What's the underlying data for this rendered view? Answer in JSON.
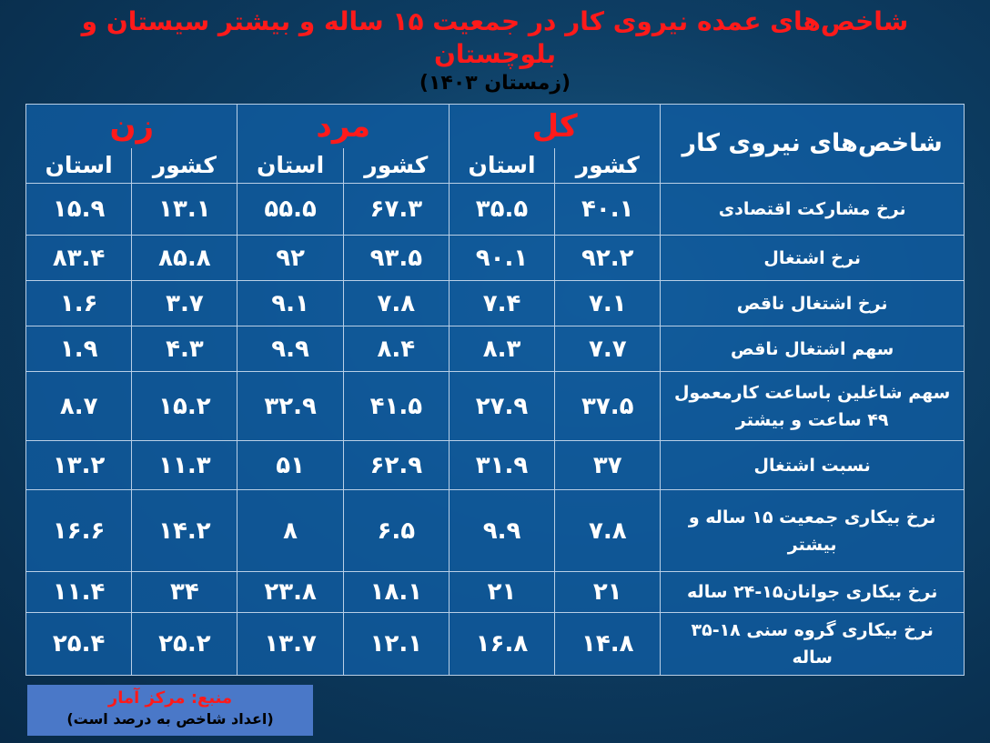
{
  "title": "شاخص‌های عمده نیروی کار در جمعیت ۱۵ ساله و بیشتر سیستان و بلوچستان",
  "subtitle": "(زمستان ۱۴۰۳)",
  "table": {
    "main_header": "شاخص‌های نیروی کار",
    "groups": [
      "کل",
      "مرد",
      "زن"
    ],
    "subheaders": [
      "کشور",
      "استان"
    ],
    "rows": [
      {
        "label": "نرخ مشارکت اقتصادی",
        "values": [
          "۴۰.۱",
          "۳۵.۵",
          "۶۷.۳",
          "۵۵.۵",
          "۱۳.۱",
          "۱۵.۹"
        ]
      },
      {
        "label": "نرخ اشتغال",
        "values": [
          "۹۲.۲",
          "۹۰.۱",
          "۹۳.۵",
          "۹۲",
          "۸۵.۸",
          "۸۳.۴"
        ]
      },
      {
        "label": "نرخ اشتغال ناقص",
        "values": [
          "۷.۱",
          "۷.۴",
          "۷.۸",
          "۹.۱",
          "۳.۷",
          "۱.۶"
        ]
      },
      {
        "label": "سهم اشتغال ناقص",
        "values": [
          "۷.۷",
          "۸.۳",
          "۸.۴",
          "۹.۹",
          "۴.۳",
          "۱.۹"
        ]
      },
      {
        "label": "سهم شاغلین باساعت کارمعمول ۴۹ ساعت و بیشتر",
        "values": [
          "۳۷.۵",
          "۲۷.۹",
          "۴۱.۵",
          "۳۲.۹",
          "۱۵.۲",
          "۸.۷"
        ]
      },
      {
        "label": "نسبت اشتغال",
        "values": [
          "۳۷",
          "۳۱.۹",
          "۶۲.۹",
          "۵۱",
          "۱۱.۳",
          "۱۳.۲"
        ]
      },
      {
        "label": "نرخ بیکاری جمعیت ۱۵ ساله و بیشتر",
        "values": [
          "۷.۸",
          "۹.۹",
          "۶.۵",
          "۸",
          "۱۴.۲",
          "۱۶.۶"
        ]
      },
      {
        "label": "نرخ بیکاری جوانان۱۵-۲۴ ساله",
        "values": [
          "۲۱",
          "۲۱",
          "۱۸.۱",
          "۲۳.۸",
          "۳۴",
          "۱۱.۴"
        ]
      },
      {
        "label": "نرخ بیکاری گروه سنی ۱۸-۳۵ ساله",
        "values": [
          "۱۴.۸",
          "۱۶.۸",
          "۱۲.۱",
          "۱۳.۷",
          "۲۵.۲",
          "۲۵.۴"
        ]
      }
    ]
  },
  "note": {
    "source": "منبع: مرکز آمار",
    "unit": "(اعداد شاخص به درصد است)"
  },
  "colors": {
    "title": "#ff1a1a",
    "table_bg": "#105ca0",
    "note_bg": "#4a78c8"
  }
}
